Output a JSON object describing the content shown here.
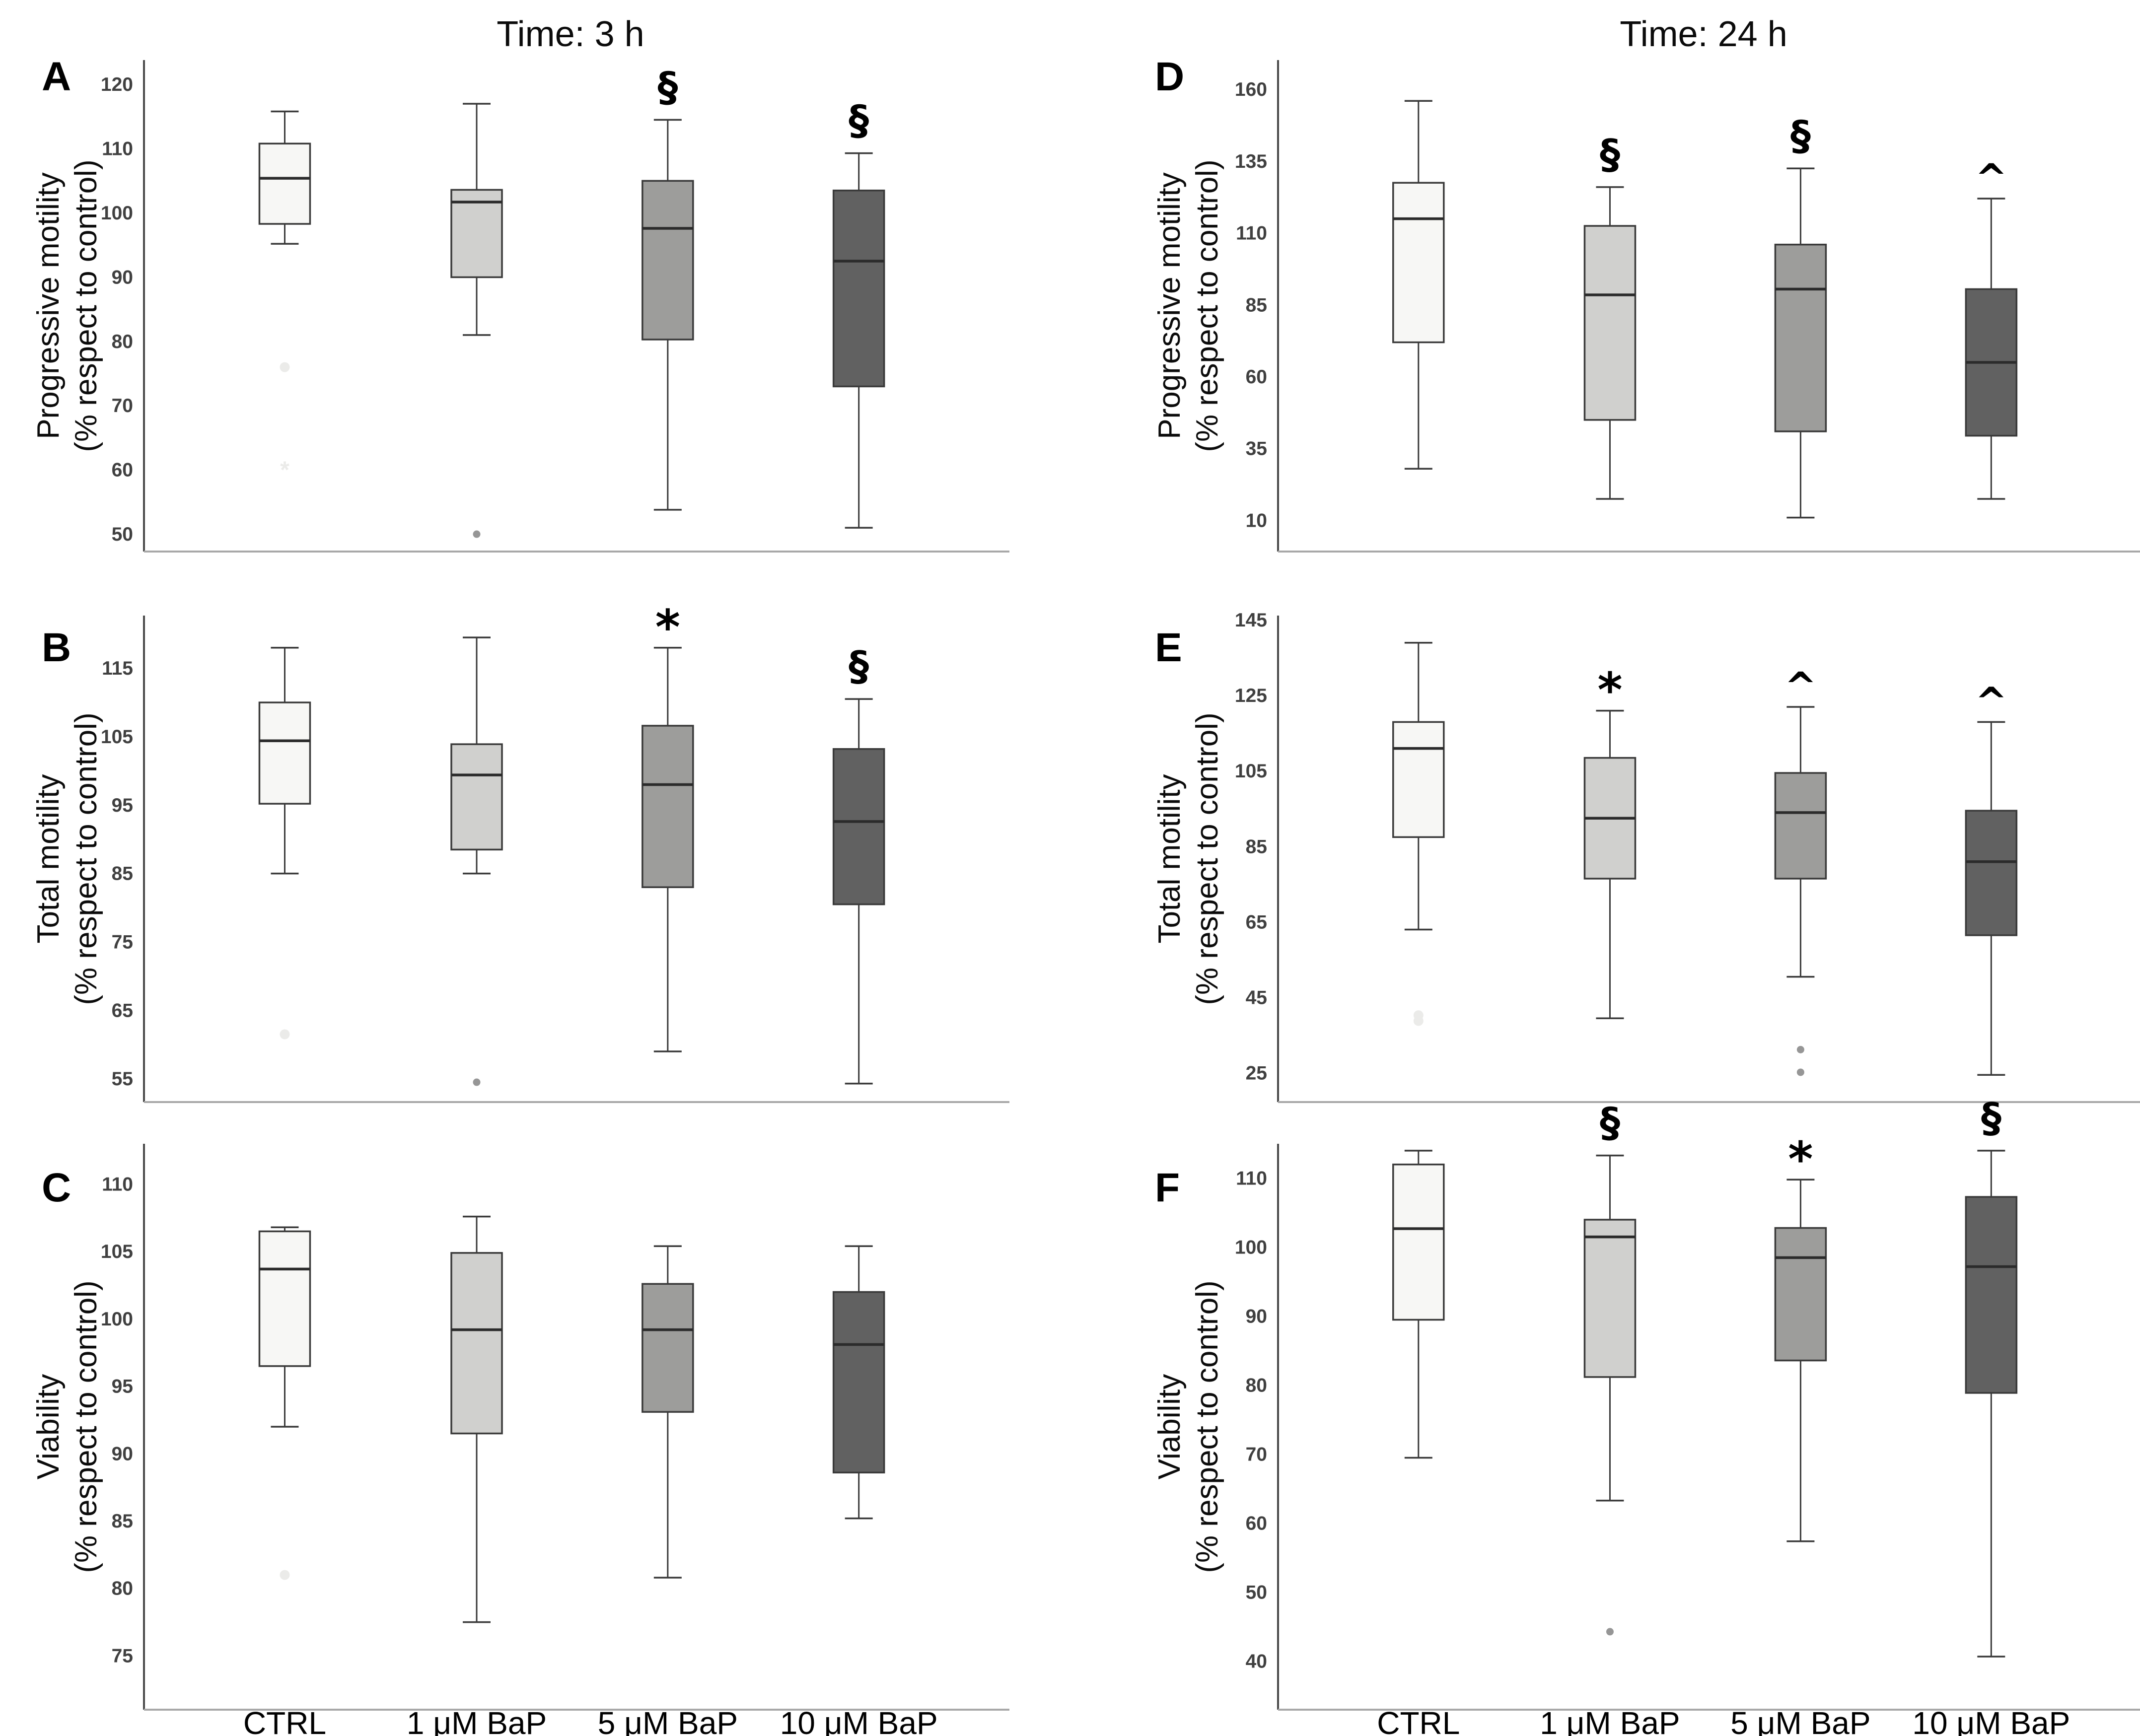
{
  "figure": {
    "columns": [
      {
        "title": "Time: 3 h"
      },
      {
        "title": "Time: 24 h"
      }
    ],
    "x_categories": [
      "CTRL",
      "1 μM BaP",
      "5 μM BaP",
      "10 μM BaP"
    ],
    "row_ylabels": [
      {
        "line1": "Progressive motility",
        "line2": "(% respect to control)"
      },
      {
        "line1": "Total motility",
        "line2": "(% respect to control)"
      },
      {
        "line1": "Viability",
        "line2": "(% respect to control)"
      }
    ],
    "colors": {
      "group_fills": [
        "#f7f7f5",
        "#d0d0ce",
        "#9d9d9b",
        "#616161"
      ],
      "box_stroke": "#3a3a3a",
      "median": "#2b2b2b",
      "y_axis_line": "#4a4a4a",
      "baseline": "#a8a8a8",
      "tick_label": "#404040",
      "faint_marker": "#ebebe9",
      "gray_marker": "#969696"
    }
  },
  "chart_data": [
    {
      "type": "box",
      "panel": "A",
      "row": 0,
      "col": 0,
      "title": "Time: 3 h",
      "ylabel_line1": "Progressive motility",
      "ylabel_line2": "(% respect to control)",
      "ylim": [
        47.3,
        123.8
      ],
      "ticks": [
        120,
        110,
        100,
        90,
        80,
        70,
        60,
        50
      ],
      "categories": [
        "CTRL",
        "1 μM BaP",
        "5 μM BaP",
        "10 μM BaP"
      ],
      "boxes": [
        {
          "group": "CTRL",
          "whisker_low": 95.2,
          "q1": 98.3,
          "median": 105.4,
          "q3": 110.8,
          "whisker_high": 115.8,
          "sig": ""
        },
        {
          "group": "1 μM BaP",
          "whisker_low": 81.0,
          "q1": 90.0,
          "median": 101.7,
          "q3": 103.6,
          "whisker_high": 117.0,
          "sig": ""
        },
        {
          "group": "5 μM BaP",
          "whisker_low": 53.8,
          "q1": 80.3,
          "median": 97.6,
          "q3": 105.0,
          "whisker_high": 114.5,
          "sig": "§"
        },
        {
          "group": "10 μM BaP",
          "whisker_low": 51.0,
          "q1": 73.0,
          "median": 92.5,
          "q3": 103.5,
          "whisker_high": 109.3,
          "sig": "§"
        }
      ],
      "outliers": [
        {
          "group": 0,
          "value": 76.0,
          "marker": "circle",
          "shade": "faint"
        },
        {
          "group": 0,
          "value": 60.0,
          "marker": "star",
          "shade": "faint"
        },
        {
          "group": 1,
          "value": 50.0,
          "marker": "circle",
          "shade": "gray"
        }
      ]
    },
    {
      "type": "box",
      "panel": "B",
      "row": 1,
      "col": 0,
      "title": "Time: 3 h",
      "ylabel_line1": "Total motility",
      "ylabel_line2": "(% respect to control)",
      "ylim": [
        51.6,
        122.7
      ],
      "ticks": [
        115,
        105,
        95,
        85,
        75,
        65,
        55
      ],
      "categories": [
        "CTRL",
        "1 μM BaP",
        "5 μM BaP",
        "10 μM BaP"
      ],
      "boxes": [
        {
          "group": "CTRL",
          "whisker_low": 85.0,
          "q1": 95.2,
          "median": 104.4,
          "q3": 110.0,
          "whisker_high": 118.0,
          "sig": ""
        },
        {
          "group": "1 μM BaP",
          "whisker_low": 85.0,
          "q1": 88.5,
          "median": 99.4,
          "q3": 103.9,
          "whisker_high": 119.5,
          "sig": ""
        },
        {
          "group": "5 μM BaP",
          "whisker_low": 59.0,
          "q1": 83.0,
          "median": 98.0,
          "q3": 106.6,
          "whisker_high": 118.0,
          "sig": "*"
        },
        {
          "group": "10 μM BaP",
          "whisker_low": 54.3,
          "q1": 80.5,
          "median": 92.6,
          "q3": 103.2,
          "whisker_high": 110.5,
          "sig": "§"
        }
      ],
      "outliers": [
        {
          "group": 0,
          "value": 61.5,
          "marker": "circle",
          "shade": "faint"
        },
        {
          "group": 1,
          "value": 54.5,
          "marker": "circle",
          "shade": "gray"
        }
      ]
    },
    {
      "type": "box",
      "panel": "C",
      "row": 2,
      "col": 0,
      "title": "Time: 3 h",
      "ylabel_line1": "Viability",
      "ylabel_line2": "(% respect to control)",
      "ylim": [
        71,
        113
      ],
      "ticks": [
        110,
        105,
        100,
        95,
        90,
        85,
        80,
        75
      ],
      "categories": [
        "CTRL",
        "1 μM BaP",
        "5 μM BaP",
        "10 μM BaP"
      ],
      "boxes": [
        {
          "group": "CTRL",
          "whisker_low": 92.0,
          "q1": 96.5,
          "median": 103.7,
          "q3": 106.5,
          "whisker_high": 106.8,
          "sig": ""
        },
        {
          "group": "1 μM BaP",
          "whisker_low": 77.5,
          "q1": 91.5,
          "median": 99.2,
          "q3": 104.9,
          "whisker_high": 107.6,
          "sig": ""
        },
        {
          "group": "5 μM BaP",
          "whisker_low": 80.8,
          "q1": 93.1,
          "median": 99.2,
          "q3": 102.6,
          "whisker_high": 105.4,
          "sig": ""
        },
        {
          "group": "10 μM BaP",
          "whisker_low": 85.2,
          "q1": 88.6,
          "median": 98.1,
          "q3": 102.0,
          "whisker_high": 105.4,
          "sig": ""
        }
      ],
      "outliers": [
        {
          "group": 0,
          "value": 81.0,
          "marker": "circle",
          "shade": "faint"
        }
      ]
    },
    {
      "type": "box",
      "panel": "D",
      "row": 0,
      "col": 1,
      "title": "Time: 24 h",
      "ylabel_line1": "Progressive motility",
      "ylabel_line2": "(% respect to control)",
      "ylim": [
        -0.8,
        170.2
      ],
      "ticks": [
        160,
        135,
        110,
        85,
        60,
        35,
        10
      ],
      "categories": [
        "CTRL",
        "1 μM BaP",
        "5 μM BaP",
        "10 μM BaP"
      ],
      "boxes": [
        {
          "group": "CTRL",
          "whisker_low": 28.0,
          "q1": 72.0,
          "median": 115.0,
          "q3": 127.5,
          "whisker_high": 156.0,
          "sig": ""
        },
        {
          "group": "1 μM BaP",
          "whisker_low": 17.5,
          "q1": 45.0,
          "median": 88.5,
          "q3": 112.5,
          "whisker_high": 126.0,
          "sig": "§"
        },
        {
          "group": "5 μM BaP",
          "whisker_low": 11.0,
          "q1": 41.0,
          "median": 90.5,
          "q3": 106.0,
          "whisker_high": 132.5,
          "sig": "§"
        },
        {
          "group": "10 μM BaP",
          "whisker_low": 17.5,
          "q1": 39.5,
          "median": 65.0,
          "q3": 90.5,
          "whisker_high": 122.0,
          "sig": "^"
        }
      ],
      "outliers": []
    },
    {
      "type": "box",
      "panel": "E",
      "row": 1,
      "col": 1,
      "title": "Time: 24 h",
      "ylabel_line1": "Total motility",
      "ylabel_line2": "(% respect to control)",
      "ylim": [
        17.3,
        146.2
      ],
      "ticks": [
        145,
        125,
        105,
        85,
        65,
        45,
        25
      ],
      "categories": [
        "CTRL",
        "1 μM BaP",
        "5 μM BaP",
        "10 μM BaP"
      ],
      "boxes": [
        {
          "group": "CTRL",
          "whisker_low": 63.0,
          "q1": 87.5,
          "median": 111.0,
          "q3": 118.0,
          "whisker_high": 139.0,
          "sig": ""
        },
        {
          "group": "1 μM BaP",
          "whisker_low": 39.5,
          "q1": 76.5,
          "median": 92.5,
          "q3": 108.5,
          "whisker_high": 121.0,
          "sig": "*"
        },
        {
          "group": "5 μM BaP",
          "whisker_low": 50.5,
          "q1": 76.5,
          "median": 94.0,
          "q3": 104.5,
          "whisker_high": 122.0,
          "sig": "^"
        },
        {
          "group": "10 μM BaP",
          "whisker_low": 24.5,
          "q1": 61.5,
          "median": 81.0,
          "q3": 94.5,
          "whisker_high": 118.0,
          "sig": "^"
        }
      ],
      "outliers": [
        {
          "group": 0,
          "value": 40.3,
          "marker": "circle",
          "shade": "faint"
        },
        {
          "group": 0,
          "value": 38.8,
          "marker": "circle",
          "shade": "faint"
        },
        {
          "group": 2,
          "value": 31.2,
          "marker": "circle",
          "shade": "gray"
        },
        {
          "group": 2,
          "value": 25.2,
          "marker": "circle",
          "shade": "gray"
        }
      ]
    },
    {
      "type": "box",
      "panel": "F",
      "row": 2,
      "col": 1,
      "title": "Time: 24 h",
      "ylabel_line1": "Viability",
      "ylabel_line2": "(% respect to control)",
      "ylim": [
        33,
        115
      ],
      "ticks": [
        110,
        100,
        90,
        80,
        70,
        60,
        50,
        40
      ],
      "categories": [
        "CTRL",
        "1 μM BaP",
        "5 μM BaP",
        "10 μM BaP"
      ],
      "boxes": [
        {
          "group": "CTRL",
          "whisker_low": 69.5,
          "q1": 89.5,
          "median": 102.7,
          "q3": 112.0,
          "whisker_high": 114.0,
          "sig": ""
        },
        {
          "group": "1 μM BaP",
          "whisker_low": 63.3,
          "q1": 81.2,
          "median": 101.5,
          "q3": 104.0,
          "whisker_high": 113.3,
          "sig": "§"
        },
        {
          "group": "5 μM BaP",
          "whisker_low": 57.4,
          "q1": 83.6,
          "median": 98.5,
          "q3": 102.8,
          "whisker_high": 109.8,
          "sig": "*"
        },
        {
          "group": "10 μM BaP",
          "whisker_low": 40.7,
          "q1": 78.9,
          "median": 97.2,
          "q3": 107.3,
          "whisker_high": 114.0,
          "sig": "§"
        }
      ],
      "outliers": [
        {
          "group": 1,
          "value": 44.3,
          "marker": "circle",
          "shade": "gray"
        }
      ]
    }
  ]
}
